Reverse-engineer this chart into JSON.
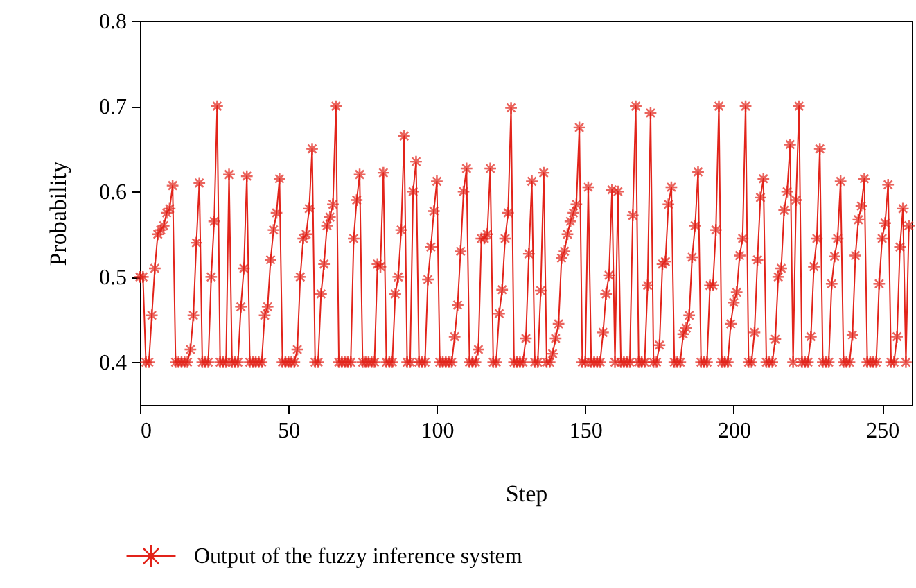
{
  "chart_data": {
    "type": "line",
    "xlabel": "Step",
    "ylabel": "Probability",
    "xlim": [
      0,
      260
    ],
    "xticks": [
      0,
      50,
      100,
      150,
      200,
      250
    ],
    "ylim": [
      0.35,
      0.8
    ],
    "yticks": [
      {
        "value": 0.4,
        "label": "0.4"
      },
      {
        "value": 0.5,
        "label": "0.5"
      },
      {
        "value": 0.6,
        "label": "0.6"
      },
      {
        "value": 0.7,
        "label": "0.7"
      },
      {
        "value": 0.8,
        "label": "0.8"
      }
    ],
    "grid": false,
    "legend": "bottom",
    "marker": "star",
    "line_style": "solid",
    "x": [
      0,
      1,
      2,
      3,
      4,
      5,
      6,
      7,
      8,
      9,
      10,
      11,
      12,
      13,
      14,
      15,
      16,
      17,
      18,
      19,
      20,
      21,
      22,
      23,
      24,
      25,
      26,
      27,
      28,
      29,
      30,
      31,
      32,
      33,
      34,
      35,
      36,
      37,
      38,
      39,
      40,
      41,
      42,
      43,
      44,
      45,
      46,
      47,
      48,
      49,
      50,
      51,
      52,
      53,
      54,
      55,
      56,
      57,
      58,
      59,
      60,
      61,
      62,
      63,
      64,
      65,
      66,
      67,
      68,
      69,
      70,
      71,
      72,
      73,
      74,
      75,
      76,
      77,
      78,
      79,
      80,
      81,
      82,
      83,
      84,
      85,
      86,
      87,
      88,
      89,
      90,
      91,
      92,
      93,
      94,
      95,
      96,
      97,
      98,
      99,
      100,
      101,
      102,
      103,
      104,
      105,
      106,
      107,
      108,
      109,
      110,
      111,
      112,
      113,
      114,
      115,
      116,
      117,
      118,
      119,
      120,
      121,
      122,
      123,
      124,
      125,
      126,
      127,
      128,
      129,
      130,
      131,
      132,
      133,
      134,
      135,
      136,
      137,
      138,
      139,
      140,
      141,
      142,
      143,
      144,
      145,
      146,
      147,
      148,
      149,
      150,
      151,
      152,
      153,
      154,
      155,
      156,
      157,
      158,
      159,
      160,
      161,
      162,
      163,
      164,
      165,
      166,
      167,
      168,
      169,
      170,
      171,
      172,
      173,
      174,
      175,
      176,
      177,
      178,
      179,
      180,
      181,
      182,
      183,
      184,
      185,
      186,
      187,
      188,
      189,
      190,
      191,
      192,
      193,
      194,
      195,
      196,
      197,
      198,
      199,
      200,
      201,
      202,
      203,
      204,
      205,
      206,
      207,
      208,
      209,
      210,
      211,
      212,
      213,
      214,
      215,
      216,
      217,
      218,
      219,
      220,
      221,
      222,
      223,
      224,
      225,
      226,
      227,
      228,
      229,
      230,
      231,
      232,
      233,
      234,
      235,
      236,
      237,
      238,
      239,
      240,
      241,
      242,
      243,
      244,
      245,
      246,
      247,
      248,
      249,
      250,
      251,
      252,
      253,
      254,
      255,
      256,
      257,
      258,
      259
    ],
    "series": [
      {
        "name": "Output of the fuzzy inference system",
        "color": "#e2231a",
        "values": [
          0.5,
          0.5,
          0.4,
          0.4,
          0.455,
          0.51,
          0.55,
          0.555,
          0.56,
          0.575,
          0.58,
          0.607,
          0.4,
          0.4,
          0.4,
          0.4,
          0.4,
          0.415,
          0.455,
          0.54,
          0.61,
          0.4,
          0.4,
          0.4,
          0.5,
          0.565,
          0.7,
          0.4,
          0.4,
          0.4,
          0.62,
          0.4,
          0.4,
          0.4,
          0.465,
          0.51,
          0.618,
          0.4,
          0.4,
          0.4,
          0.4,
          0.4,
          0.455,
          0.465,
          0.52,
          0.555,
          0.575,
          0.615,
          0.4,
          0.4,
          0.4,
          0.4,
          0.4,
          0.415,
          0.5,
          0.545,
          0.55,
          0.58,
          0.65,
          0.4,
          0.4,
          0.48,
          0.515,
          0.56,
          0.57,
          0.585,
          0.7,
          0.4,
          0.4,
          0.4,
          0.4,
          0.4,
          0.545,
          0.59,
          0.62,
          0.4,
          0.4,
          0.4,
          0.4,
          0.4,
          0.515,
          0.512,
          0.622,
          0.4,
          0.4,
          0.4,
          0.48,
          0.5,
          0.555,
          0.665,
          0.4,
          0.4,
          0.6,
          0.635,
          0.4,
          0.4,
          0.4,
          0.497,
          0.535,
          0.577,
          0.612,
          0.4,
          0.4,
          0.4,
          0.4,
          0.4,
          0.43,
          0.467,
          0.53,
          0.6,
          0.627,
          0.4,
          0.4,
          0.4,
          0.415,
          0.545,
          0.545,
          0.55,
          0.627,
          0.4,
          0.4,
          0.457,
          0.485,
          0.545,
          0.575,
          0.698,
          0.4,
          0.4,
          0.4,
          0.4,
          0.428,
          0.527,
          0.612,
          0.4,
          0.4,
          0.484,
          0.622,
          0.4,
          0.4,
          0.41,
          0.428,
          0.445,
          0.522,
          0.53,
          0.55,
          0.565,
          0.575,
          0.585,
          0.675,
          0.4,
          0.4,
          0.605,
          0.4,
          0.4,
          0.4,
          0.4,
          0.435,
          0.48,
          0.502,
          0.602,
          0.4,
          0.6,
          0.4,
          0.4,
          0.4,
          0.4,
          0.572,
          0.7,
          0.4,
          0.4,
          0.4,
          0.49,
          0.692,
          0.4,
          0.4,
          0.42,
          0.515,
          0.518,
          0.585,
          0.605,
          0.4,
          0.4,
          0.4,
          0.433,
          0.44,
          0.455,
          0.523,
          0.56,
          0.623,
          0.4,
          0.4,
          0.4,
          0.49,
          0.49,
          0.555,
          0.7,
          0.4,
          0.4,
          0.4,
          0.445,
          0.47,
          0.482,
          0.525,
          0.545,
          0.7,
          0.4,
          0.4,
          0.435,
          0.52,
          0.593,
          0.615,
          0.4,
          0.4,
          0.4,
          0.427,
          0.5,
          0.51,
          0.578,
          0.6,
          0.655,
          0.4,
          0.59,
          0.7,
          0.4,
          0.4,
          0.4,
          0.43,
          0.512,
          0.545,
          0.65,
          0.4,
          0.4,
          0.4,
          0.492,
          0.524,
          0.545,
          0.612,
          0.4,
          0.4,
          0.4,
          0.432,
          0.525,
          0.567,
          0.583,
          0.615,
          0.4,
          0.4,
          0.4,
          0.4,
          0.492,
          0.545,
          0.563,
          0.608,
          0.4,
          0.4,
          0.43,
          0.535,
          0.58,
          0.4,
          0.56
        ]
      }
    ]
  }
}
